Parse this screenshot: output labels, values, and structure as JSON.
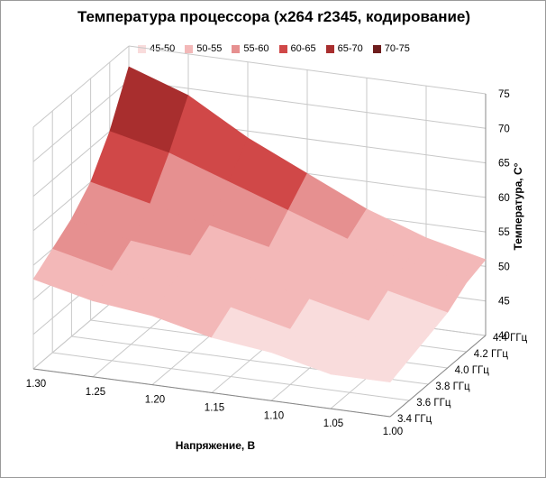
{
  "chart_data": {
    "type": "surface-3d",
    "title": "Температура процессора (x264 r2345, кодирование)",
    "xlabel": "Напряжение, В",
    "ylabel": "Температура, C°",
    "zlabel": "",
    "voltage_ticks": [
      "1.30",
      "1.25",
      "1.20",
      "1.15",
      "1.10",
      "1.05",
      "1.00"
    ],
    "frequency_ticks": [
      "3.4 ГГц",
      "3.6 ГГц",
      "3.8 ГГц",
      "4.0 ГГц",
      "4.2 ГГц",
      "4.4 ГГц"
    ],
    "temperature_ticks": [
      "40",
      "45",
      "50",
      "55",
      "60",
      "65",
      "70",
      "75"
    ],
    "temperature_range": [
      40,
      75
    ],
    "legend": [
      {
        "label": "45-50",
        "color": "#f9dcdc"
      },
      {
        "label": "50-55",
        "color": "#f3b8b8"
      },
      {
        "label": "55-60",
        "color": "#e69090"
      },
      {
        "label": "60-65",
        "color": "#d04848"
      },
      {
        "label": "65-70",
        "color": "#a82e2e"
      },
      {
        "label": "70-75",
        "color": "#6e1d1d"
      }
    ],
    "series": [
      {
        "name": "3.4 ГГц",
        "voltage": [
          1.3,
          1.25,
          1.2,
          1.15,
          1.1,
          1.05,
          1.0
        ],
        "values": [
          53,
          51,
          50,
          48,
          47,
          45,
          45
        ]
      },
      {
        "name": "3.6 ГГц",
        "voltage": [
          1.3,
          1.25,
          1.2,
          1.15,
          1.1,
          1.05,
          1.0
        ],
        "values": [
          55,
          53,
          52,
          50,
          48,
          47,
          46
        ]
      },
      {
        "name": "3.8 ГГц",
        "voltage": [
          1.3,
          1.25,
          1.2,
          1.15,
          1.1,
          1.05,
          1.0
        ],
        "values": [
          57,
          55,
          54,
          52,
          50,
          48,
          47
        ]
      },
      {
        "name": "4.0 ГГц",
        "voltage": [
          1.3,
          1.25,
          1.2,
          1.15,
          1.1,
          1.05,
          1.0
        ],
        "values": [
          60,
          58,
          56,
          54,
          52,
          50,
          48
        ]
      },
      {
        "name": "4.2 ГГц",
        "voltage": [
          1.3,
          1.25,
          1.2,
          1.15,
          1.1,
          1.05,
          1.0
        ],
        "values": [
          65,
          63,
          60,
          57,
          54,
          52,
          50
        ]
      },
      {
        "name": "4.4 ГГц",
        "voltage": [
          1.3,
          1.25,
          1.2,
          1.15,
          1.1,
          1.05,
          1.0
        ],
        "values": [
          72,
          69,
          64,
          60,
          56,
          53,
          51
        ]
      }
    ]
  }
}
